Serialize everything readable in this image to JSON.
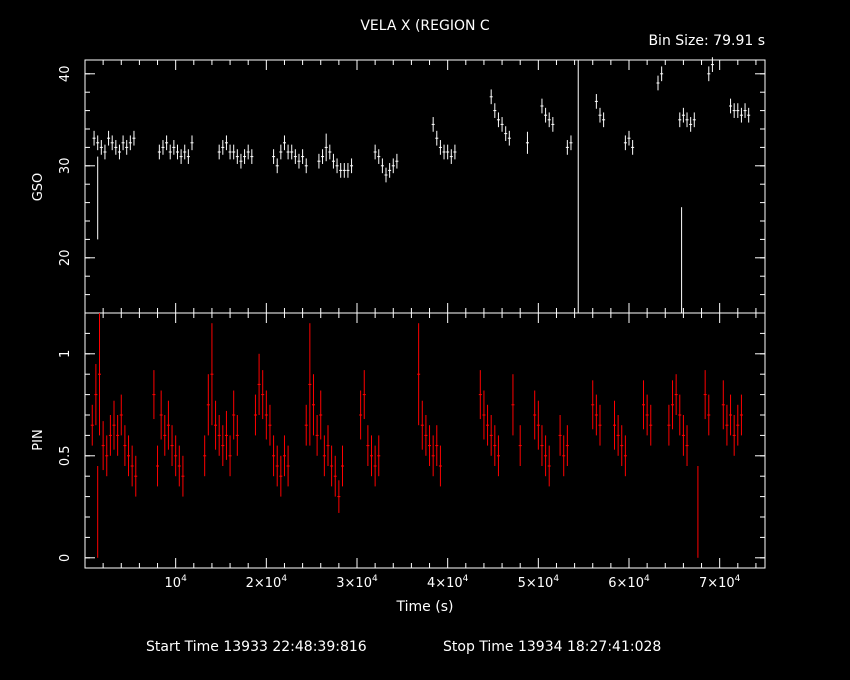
{
  "title": "VELA X (REGION C",
  "bin_size": "Bin Size: 79.91 s",
  "footer": {
    "start": "Start Time 13933 22:48:39:816",
    "stop": "Stop Time 13934 18:27:41:028"
  },
  "colors": {
    "gso": "#ffffff",
    "pin": "#ff0000",
    "axes": "#ffffff",
    "background": "#000000"
  },
  "chart_data": [
    {
      "type": "scatter",
      "panel": "top",
      "ylabel": "GSO",
      "xlim": [
        0,
        75000
      ],
      "ylim": [
        14,
        41.5
      ],
      "yticks": [
        20,
        30,
        40
      ],
      "ytick_labels": [
        "20",
        "30",
        "40"
      ],
      "series": [
        {
          "x": [
            1000,
            1400,
            1800,
            2200,
            2600,
            3000,
            3400,
            3800,
            4200,
            4600,
            5000,
            5400,
            8200,
            8600,
            9000,
            9400,
            9800,
            10200,
            10600,
            11000,
            11400,
            11800,
            14800,
            15200,
            15600,
            16000,
            16400,
            16800,
            17200,
            17600,
            18000,
            18400,
            20800,
            21200,
            21600,
            22000,
            22400,
            22800,
            23200,
            23600,
            24000,
            24400,
            25800,
            26200,
            26600,
            27000,
            27400,
            27800,
            28200,
            28600,
            29000,
            29400,
            32000,
            32400,
            32800,
            33200,
            33600,
            34000,
            34400,
            38400,
            38800,
            39200,
            39600,
            40000,
            40400,
            40800,
            44800,
            45200,
            45600,
            46000,
            46400,
            46800,
            48800,
            50400,
            50800,
            51200,
            51600,
            53200,
            53600,
            56400,
            56800,
            57200,
            59600,
            60000,
            60400,
            63200,
            63600,
            65600,
            66000,
            66400,
            66800,
            67200,
            68800,
            69200,
            71200,
            71600,
            72000,
            72400,
            72800,
            73200
          ],
          "y": [
            33,
            32.5,
            32,
            31.5,
            33,
            32.5,
            32,
            31.5,
            32.5,
            32,
            32.5,
            33,
            31.5,
            32,
            32.5,
            31.5,
            32,
            31.5,
            31,
            31.5,
            31,
            32.5,
            31.5,
            32,
            32.5,
            31.5,
            31.5,
            31,
            30.5,
            31,
            31.5,
            31,
            31,
            30,
            31.5,
            32.5,
            31.5,
            31.5,
            31,
            30.5,
            31,
            30,
            30.5,
            31,
            32,
            31.5,
            30.5,
            30,
            29.5,
            29.5,
            29.5,
            30,
            31.5,
            31,
            30,
            29,
            29.5,
            30,
            30.5,
            34.5,
            33,
            32,
            31.5,
            31.5,
            31,
            31.5,
            37.5,
            36,
            35,
            34.5,
            33.5,
            33,
            32.5,
            36.5,
            35.5,
            35,
            34.5,
            32,
            32.5,
            37,
            35.5,
            35,
            32.5,
            33,
            32,
            39,
            40,
            35,
            35.5,
            35,
            34.5,
            35,
            40,
            41,
            36.5,
            36,
            36,
            35.5,
            36,
            35.5
          ],
          "errors": [
            0.8,
            0.8,
            0.8,
            0.8,
            0.8,
            0.8,
            0.8,
            0.8,
            0.8,
            0.8,
            0.8,
            0.8,
            0.8,
            0.8,
            0.8,
            0.8,
            0.8,
            0.8,
            0.8,
            0.8,
            0.8,
            0.8,
            0.8,
            0.8,
            0.8,
            0.8,
            0.8,
            0.8,
            0.8,
            0.8,
            0.8,
            0.8,
            0.8,
            0.8,
            0.8,
            0.8,
            0.8,
            0.8,
            0.8,
            0.8,
            0.8,
            0.8,
            0.8,
            0.8,
            1.5,
            0.8,
            0.8,
            0.8,
            0.8,
            0.8,
            0.8,
            0.8,
            0.8,
            0.8,
            0.8,
            0.8,
            0.8,
            0.8,
            0.8,
            0.8,
            0.8,
            0.8,
            0.8,
            0.8,
            0.8,
            0.8,
            0.8,
            0.8,
            0.8,
            0.8,
            0.8,
            0.8,
            1.2,
            0.8,
            0.8,
            0.8,
            0.8,
            0.8,
            0.8,
            0.8,
            0.8,
            0.8,
            0.8,
            0.8,
            0.8,
            0.8,
            0.8,
            0.8,
            0.8,
            0.8,
            0.8,
            0.8,
            0.8,
            0.8,
            0.8,
            0.8,
            0.8,
            0.8,
            0.8,
            0.8
          ],
          "spikes": [
            {
              "x": 1400,
              "y_top": 31,
              "y_bottom": 22
            },
            {
              "x": 54400,
              "y_top": 41.5,
              "y_bottom": 14
            },
            {
              "x": 65800,
              "y_top": 25.5,
              "y_bottom": 14
            }
          ]
        }
      ]
    },
    {
      "type": "scatter",
      "panel": "bottom",
      "ylabel": "PIN",
      "xlabel": "Time (s)",
      "xlim": [
        0,
        75000
      ],
      "ylim": [
        -0.05,
        1.2
      ],
      "yticks": [
        0,
        0.5,
        1
      ],
      "ytick_labels": [
        "0",
        "0.5",
        "1"
      ],
      "xticks": [
        10000,
        20000,
        30000,
        40000,
        50000,
        60000,
        70000
      ],
      "xtick_labels": [
        {
          "mant": "10",
          "exp": "4"
        },
        {
          "mant": "2×10",
          "exp": "4"
        },
        {
          "mant": "3×10",
          "exp": "4"
        },
        {
          "mant": "4×10",
          "exp": "4"
        },
        {
          "mant": "5×10",
          "exp": "4"
        },
        {
          "mant": "6×10",
          "exp": "4"
        },
        {
          "mant": "7×10",
          "exp": "4"
        }
      ],
      "series": [
        {
          "x": [
            800,
            1200,
            1600,
            2000,
            2400,
            2800,
            3200,
            3600,
            4000,
            4400,
            4800,
            5200,
            5600,
            7600,
            8000,
            8400,
            8800,
            9200,
            9600,
            10000,
            10400,
            10800,
            13200,
            13600,
            14000,
            14400,
            14800,
            15200,
            15600,
            16000,
            16400,
            16800,
            18800,
            19200,
            19600,
            20000,
            20400,
            20800,
            21200,
            21600,
            22000,
            22400,
            24400,
            24800,
            25200,
            25600,
            26000,
            26400,
            26800,
            27200,
            27600,
            28000,
            28400,
            30400,
            30800,
            31200,
            31600,
            32000,
            32400,
            36800,
            37200,
            37600,
            38000,
            38400,
            38800,
            39200,
            43600,
            44000,
            44400,
            44800,
            45200,
            45600,
            47200,
            48000,
            49600,
            50000,
            50400,
            50800,
            51200,
            52400,
            52800,
            53200,
            56000,
            56400,
            56800,
            58400,
            58800,
            59200,
            59600,
            61600,
            62000,
            62400,
            64400,
            64800,
            65200,
            65600,
            66000,
            66400,
            68400,
            68800,
            70400,
            70800,
            71200,
            71600,
            72000,
            72400
          ],
          "y": [
            0.65,
            0.8,
            0.9,
            0.55,
            0.5,
            0.6,
            0.65,
            0.6,
            0.7,
            0.55,
            0.5,
            0.45,
            0.4,
            0.8,
            0.45,
            0.7,
            0.6,
            0.65,
            0.55,
            0.5,
            0.45,
            0.4,
            0.5,
            0.75,
            0.9,
            0.65,
            0.6,
            0.55,
            0.6,
            0.5,
            0.7,
            0.6,
            0.7,
            0.85,
            0.8,
            0.7,
            0.65,
            0.5,
            0.45,
            0.4,
            0.5,
            0.45,
            0.65,
            0.85,
            0.75,
            0.6,
            0.7,
            0.5,
            0.55,
            0.45,
            0.4,
            0.3,
            0.45,
            0.7,
            0.8,
            0.55,
            0.5,
            0.45,
            0.5,
            0.9,
            0.65,
            0.6,
            0.55,
            0.5,
            0.55,
            0.45,
            0.8,
            0.7,
            0.65,
            0.6,
            0.55,
            0.5,
            0.75,
            0.55,
            0.7,
            0.65,
            0.55,
            0.5,
            0.45,
            0.6,
            0.5,
            0.55,
            0.75,
            0.7,
            0.65,
            0.65,
            0.6,
            0.55,
            0.5,
            0.75,
            0.7,
            0.65,
            0.65,
            0.75,
            0.8,
            0.7,
            0.6,
            0.55,
            0.8,
            0.7,
            0.75,
            0.65,
            0.7,
            0.6,
            0.65,
            0.7
          ],
          "errors": [
            0.1,
            0.15,
            0.3,
            0.12,
            0.1,
            0.1,
            0.12,
            0.1,
            0.1,
            0.1,
            0.1,
            0.1,
            0.1,
            0.12,
            0.1,
            0.12,
            0.1,
            0.12,
            0.1,
            0.1,
            0.1,
            0.1,
            0.1,
            0.15,
            0.25,
            0.12,
            0.1,
            0.1,
            0.12,
            0.1,
            0.12,
            0.1,
            0.1,
            0.15,
            0.12,
            0.12,
            0.1,
            0.1,
            0.1,
            0.1,
            0.1,
            0.1,
            0.1,
            0.3,
            0.15,
            0.1,
            0.12,
            0.1,
            0.1,
            0.1,
            0.1,
            0.08,
            0.1,
            0.12,
            0.12,
            0.1,
            0.1,
            0.1,
            0.1,
            0.25,
            0.12,
            0.1,
            0.1,
            0.1,
            0.1,
            0.1,
            0.12,
            0.12,
            0.1,
            0.1,
            0.1,
            0.1,
            0.15,
            0.1,
            0.12,
            0.12,
            0.1,
            0.1,
            0.1,
            0.1,
            0.1,
            0.1,
            0.12,
            0.1,
            0.1,
            0.12,
            0.1,
            0.1,
            0.1,
            0.12,
            0.1,
            0.1,
            0.1,
            0.12,
            0.1,
            0.1,
            0.1,
            0.1,
            0.12,
            0.1,
            0.12,
            0.1,
            0.1,
            0.1,
            0.1,
            0.1
          ],
          "spikes": [
            {
              "x": 1400,
              "y_top": 0.45,
              "y_bottom": 0
            },
            {
              "x": 67600,
              "y_top": 0.45,
              "y_bottom": 0
            }
          ]
        }
      ]
    }
  ]
}
